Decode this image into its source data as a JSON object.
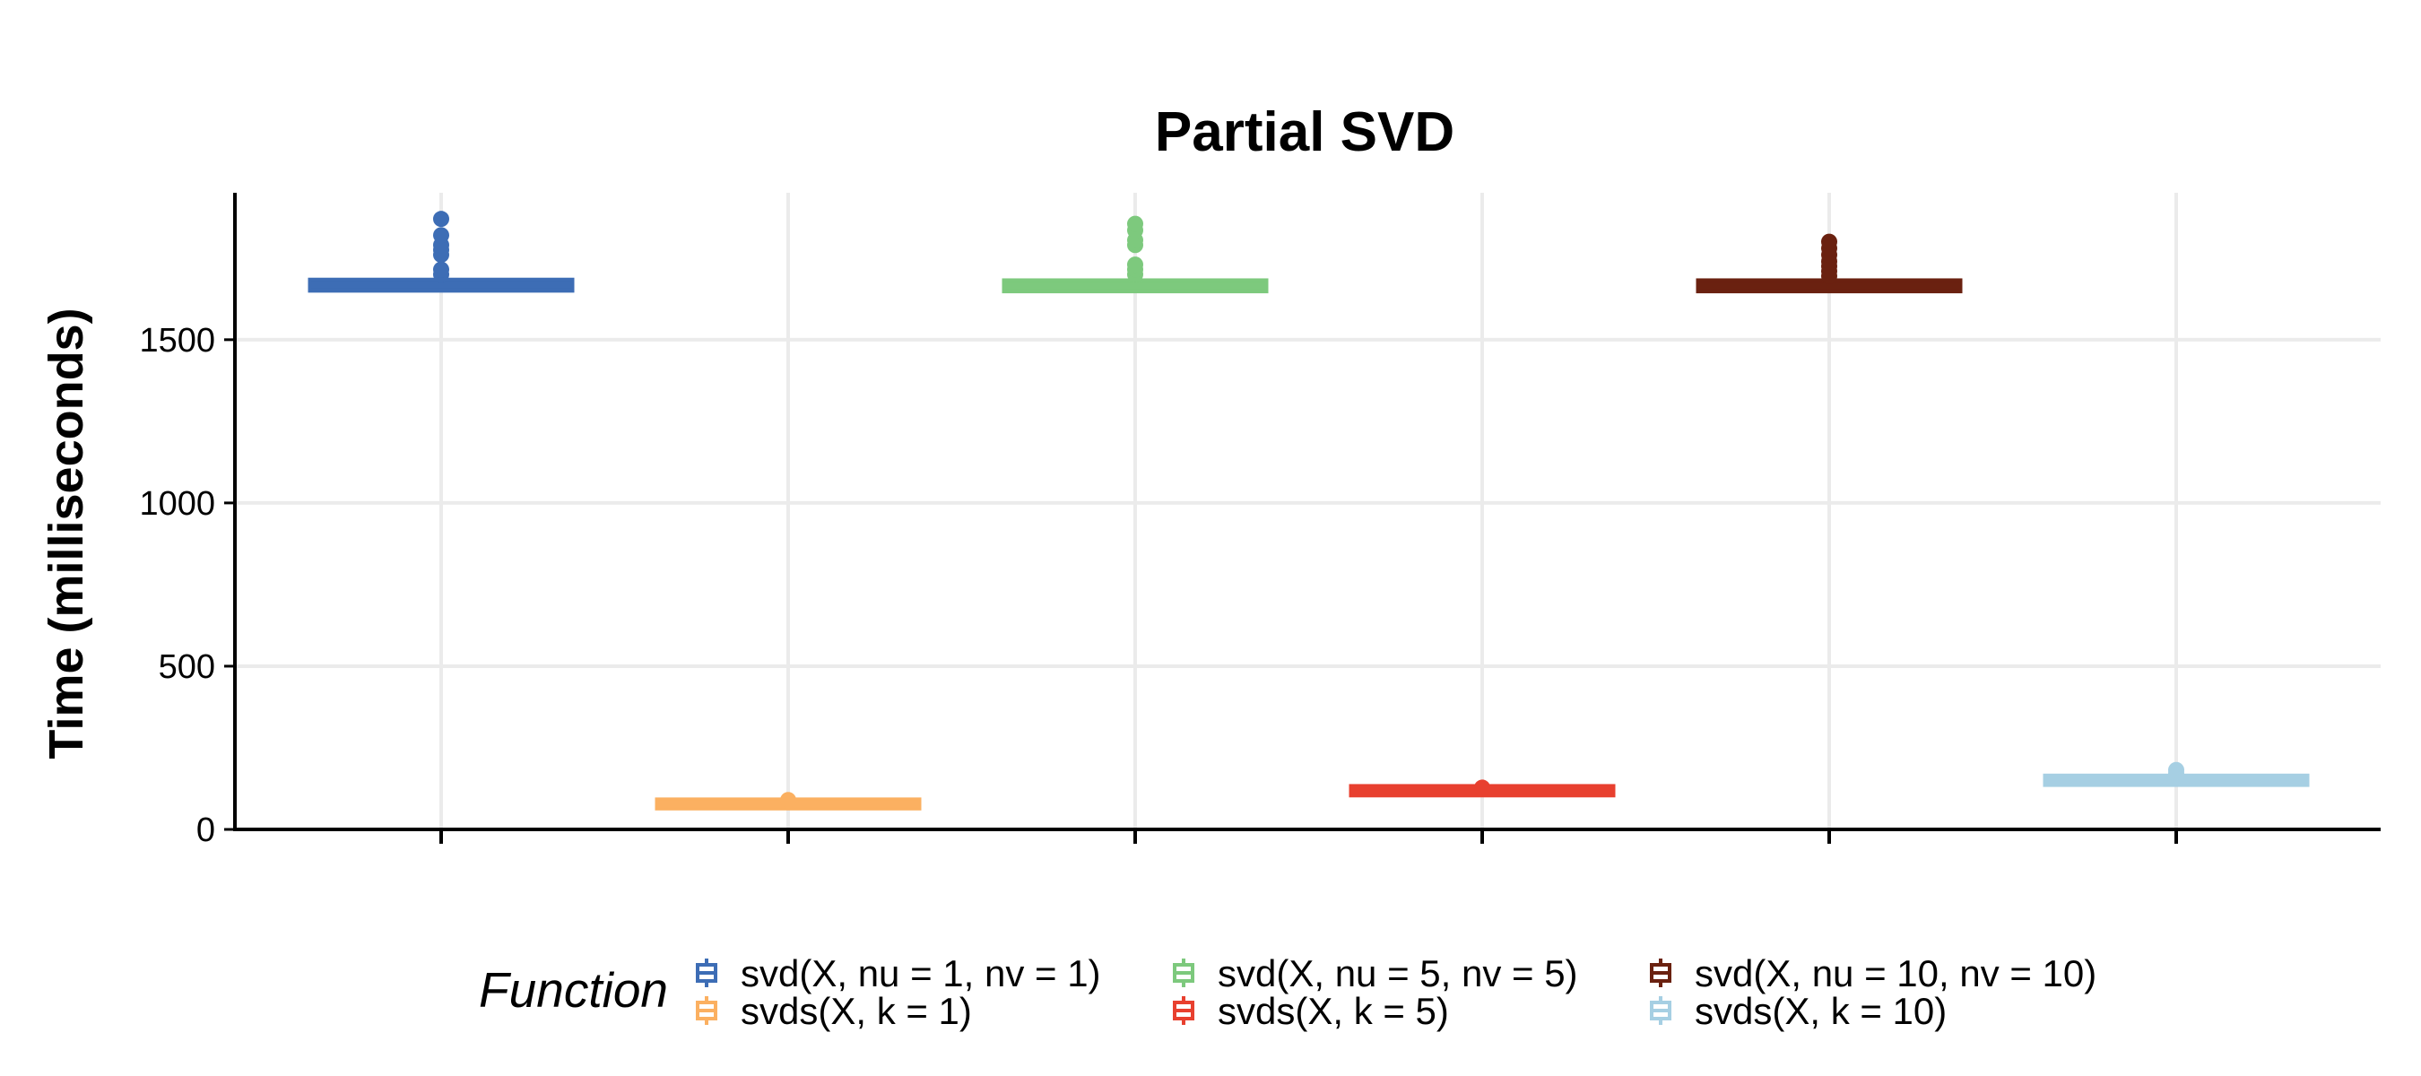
{
  "chart_data": {
    "type": "box",
    "title": "Partial SVD",
    "xlabel": "",
    "ylabel": "Time (milliseconds)",
    "ylim": [
      0,
      1950
    ],
    "yticks": [
      0,
      500,
      1000,
      1500
    ],
    "grid": true,
    "legend_title": "Function",
    "legend_position": "bottom",
    "categories": [
      "svd(X, nu = 1, nv = 1)",
      "svds(X, k = 1)",
      "svd(X, nu = 5, nv = 5)",
      "svds(X, k = 5)",
      "svd(X, nu = 10, nv = 10)",
      "svds(X, k = 10)"
    ],
    "series": [
      {
        "name": "svd(X, nu = 1, nv = 1)",
        "color": "#3d6db5",
        "median": 1668,
        "q1": 1662,
        "q3": 1672,
        "whisker_low": 1660,
        "whisker_high": 1685,
        "outliers": [
          1700,
          1715,
          1760,
          1775,
          1790,
          1820,
          1870
        ]
      },
      {
        "name": "svds(X, k = 1)",
        "color": "#fbb061",
        "median": 78,
        "q1": 76,
        "q3": 80,
        "whisker_low": 74,
        "whisker_high": 82,
        "outliers": [
          90
        ]
      },
      {
        "name": "svd(X, nu = 5, nv = 5)",
        "color": "#7dc97d",
        "median": 1665,
        "q1": 1660,
        "q3": 1670,
        "whisker_low": 1658,
        "whisker_high": 1685,
        "outliers": [
          1700,
          1715,
          1730,
          1790,
          1805,
          1835,
          1855
        ]
      },
      {
        "name": "svds(X, k = 5)",
        "color": "#e8402f",
        "median": 118,
        "q1": 116,
        "q3": 121,
        "whisker_low": 114,
        "whisker_high": 124,
        "outliers": [
          128
        ]
      },
      {
        "name": "svd(X, nu = 10, nv = 10)",
        "color": "#6a2110",
        "median": 1665,
        "q1": 1660,
        "q3": 1670,
        "whisker_low": 1658,
        "whisker_high": 1685,
        "outliers": [
          1695,
          1710,
          1725,
          1740,
          1760,
          1780,
          1800
        ]
      },
      {
        "name": "svds(X, k = 10)",
        "color": "#a6cfe3",
        "median": 150,
        "q1": 148,
        "q3": 153,
        "whisker_low": 146,
        "whisker_high": 158,
        "outliers": [
          172,
          182
        ]
      }
    ]
  }
}
